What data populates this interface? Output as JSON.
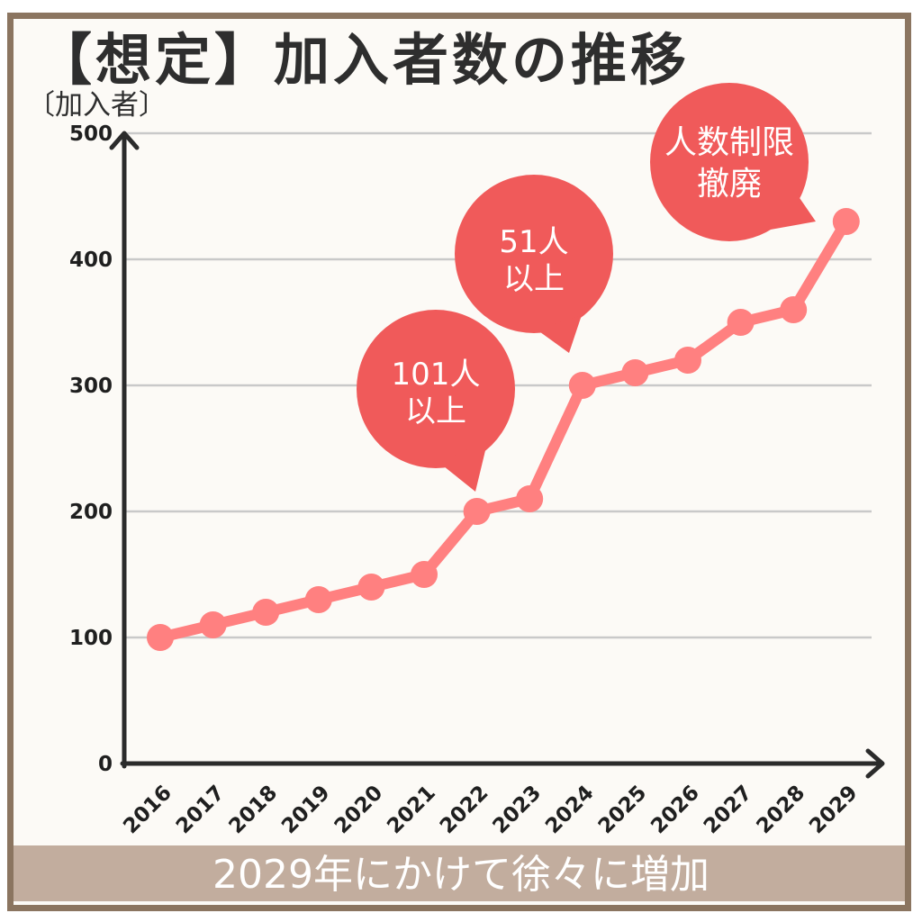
{
  "chart_data": {
    "type": "line",
    "title": "【想定】加入者数の推移",
    "ylabel": "〔加入者〕",
    "categories": [
      "2016",
      "2017",
      "2018",
      "2019",
      "2020",
      "2021",
      "2022",
      "2023",
      "2024",
      "2025",
      "2026",
      "2027",
      "2028",
      "2029"
    ],
    "series": [
      {
        "values": [
          100,
          110,
          120,
          130,
          140,
          150,
          200,
          210,
          300,
          310,
          320,
          350,
          360,
          430
        ]
      }
    ],
    "ylim": [
      0,
      500
    ],
    "yticks": [
      0,
      100,
      200,
      300,
      400,
      500
    ],
    "grid": true,
    "annotations": [
      {
        "lines": [
          "101人",
          "以上"
        ],
        "x": "2022",
        "y": 200
      },
      {
        "lines": [
          "51人",
          "以上"
        ],
        "x": "2024",
        "y": 300
      },
      {
        "lines": [
          "人数制限",
          "撤廃"
        ],
        "x": "2029",
        "y": 430
      }
    ]
  },
  "caption": "2029年にかけて徐々に増加",
  "colors": {
    "background": "#fcfaf6",
    "border": "#8b7560",
    "grid": "#c9c9c9",
    "axis": "#2b2b2b",
    "line": "#ff8080",
    "bubble": "#f05a5a",
    "caption_band": "#c2ad9e"
  }
}
